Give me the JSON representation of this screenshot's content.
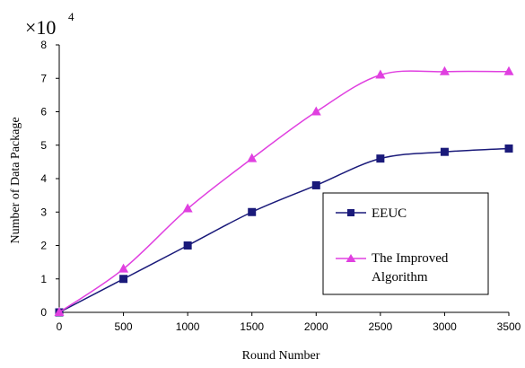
{
  "chart_data": {
    "type": "line",
    "x": [
      0,
      500,
      1000,
      1500,
      2000,
      2500,
      3000,
      3500
    ],
    "series": [
      {
        "name": "EEUC",
        "color": "#1a1a7a",
        "marker": "square",
        "values": [
          0.0,
          1.0,
          2.0,
          3.0,
          3.8,
          4.6,
          4.8,
          4.9
        ]
      },
      {
        "name": "The Improved Algorithm",
        "color": "#e040e0",
        "marker": "triangle",
        "values": [
          0.0,
          1.3,
          3.1,
          4.6,
          6.0,
          7.1,
          7.2,
          7.2
        ]
      }
    ],
    "xlabel": "Round Number",
    "ylabel": "Number of Data Package",
    "y_multiplier": {
      "base": "×10",
      "exponent": "4"
    },
    "xlim": [
      0,
      3500
    ],
    "ylim": [
      0,
      8
    ],
    "x_ticks": [
      "0",
      "500",
      "1000",
      "1500",
      "2000",
      "2500",
      "3000",
      "3500"
    ],
    "y_ticks": [
      "0",
      "1",
      "2",
      "3",
      "4",
      "5",
      "6",
      "7",
      "8"
    ],
    "legend": {
      "placement": "lower-right",
      "entries": [
        {
          "lines": [
            "EEUC"
          ]
        },
        {
          "lines": [
            "The Improved",
            "Algorithm"
          ]
        }
      ]
    },
    "grid": false
  }
}
